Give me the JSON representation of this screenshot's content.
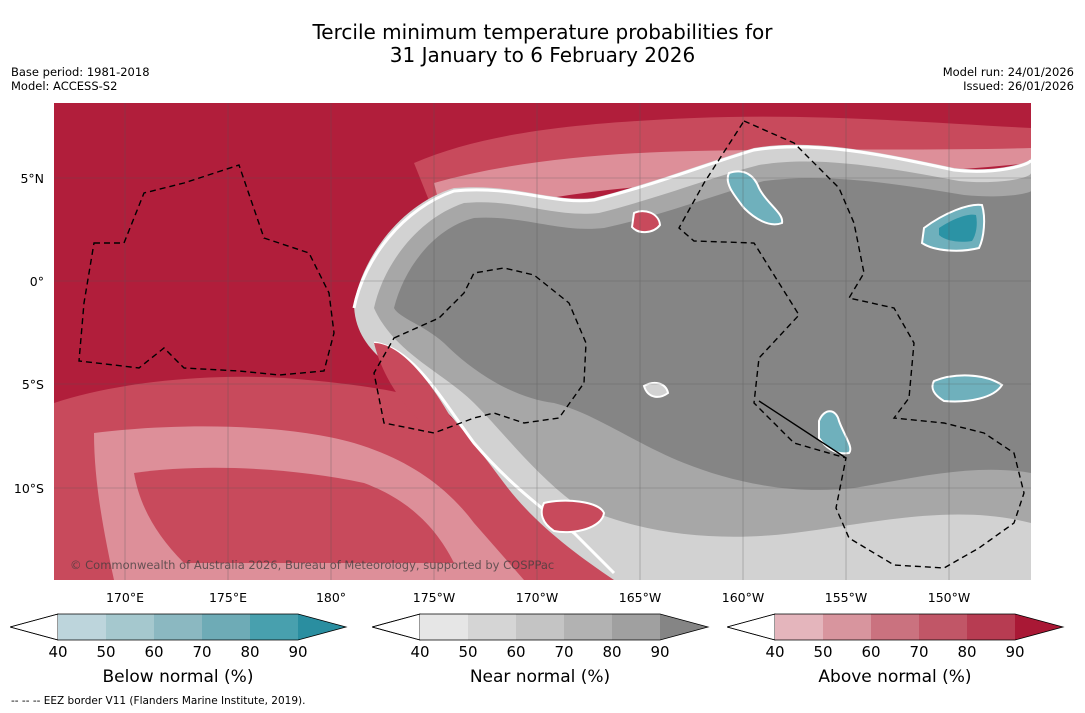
{
  "title": {
    "line1": "Tercile minimum temperature probabilities for",
    "line2": "31 January to 6 February 2026"
  },
  "meta": {
    "base_period": "Base period: 1981-2018",
    "model": "Model: ACCESS-S2",
    "model_run": "Model run: 24/01/2026",
    "issued": "Issued: 26/01/2026"
  },
  "map": {
    "lat_labels": [
      "5°N",
      "0°",
      "5°S",
      "10°S"
    ],
    "lon_labels": [
      "170°E",
      "175°E",
      "180°",
      "175°W",
      "170°W",
      "165°W",
      "160°W",
      "155°W",
      "150°W"
    ],
    "copyright": "© Commonwealth of Australia 2026, Bureau of Meteorology, supported by COSPPac",
    "colors": {
      "above_dark": "#b11e3b",
      "above_mid": "#c84a5c",
      "above_light": "#dd8f99",
      "near_dark": "#858585",
      "near_mid": "#a7a7a7",
      "near_light": "#d2d2d2",
      "below_mid": "#6fb0bc",
      "below_dark": "#2b93a5"
    }
  },
  "legend": {
    "below": {
      "title": "Below normal (%)",
      "ticks": [
        "40",
        "50",
        "60",
        "70",
        "80",
        "90"
      ],
      "colors": [
        "#bdd5dc",
        "#a5c8ce",
        "#8bb8c1",
        "#6eabb6",
        "#48a0ae",
        "#2a8ea0"
      ]
    },
    "near": {
      "title": "Near normal (%)",
      "ticks": [
        "40",
        "50",
        "60",
        "70",
        "80",
        "90"
      ],
      "colors": [
        "#e6e6e6",
        "#d5d5d5",
        "#c4c4c4",
        "#b2b2b2",
        "#a0a0a0",
        "#858585"
      ]
    },
    "above": {
      "title": "Above normal (%)",
      "ticks": [
        "40",
        "50",
        "60",
        "70",
        "80",
        "90"
      ],
      "colors": [
        "#e4b5bc",
        "#d8959e",
        "#ca727f",
        "#c15667",
        "#b73c52",
        "#a91835"
      ]
    }
  },
  "footnote": "--  --  -- EEZ border V11 (Flanders Marine Institute, 2019)."
}
